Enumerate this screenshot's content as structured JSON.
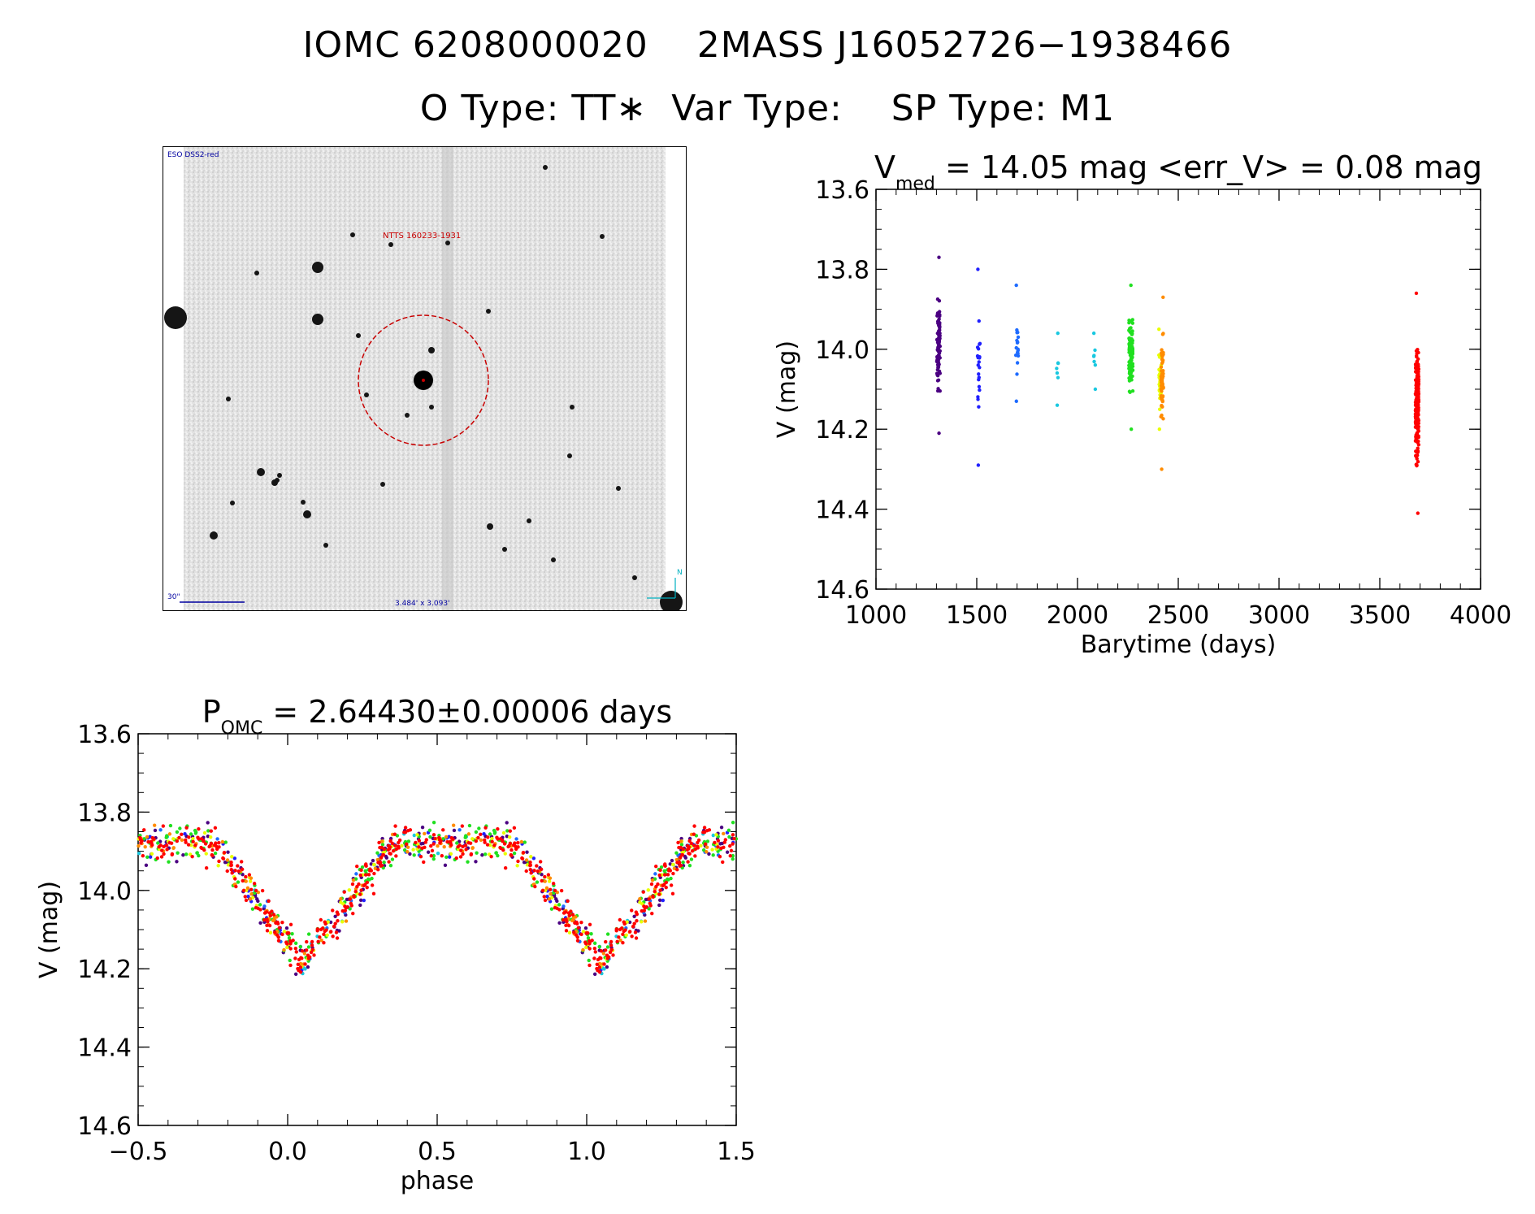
{
  "header": {
    "line1": "IOMC 6208000020    2MASS J16052726−1938466",
    "line2": "O Type: TT∗  Var Type:    SP Type: M1"
  },
  "thumbnail": {
    "top_left_label": "ESO DSS2-red",
    "object_label": "NTTS 160233-1931",
    "scale_label": "30\"",
    "fov_label": "3.484' x 3.093'",
    "compass_label": "N"
  },
  "colors": {
    "seq1": "#4b0082",
    "seq2": "#2020ff",
    "seq3": "#1e6bff",
    "seq4": "#19c8e0",
    "seq5": "#20e020",
    "seq6": "#e8ff00",
    "seq7": "#ff8c00",
    "seq8": "#ff0000",
    "circle": "#c80000"
  },
  "chart_data": [
    {
      "type": "scatter",
      "name": "lightcurve",
      "title": "V",
      "title_sub": "med",
      "title_rest": " = 14.05 mag <err_V> = 0.08 mag",
      "xlabel": "Barytime (days)",
      "ylabel": "V (mag)",
      "xlim": [
        1000,
        4000
      ],
      "ylim": [
        14.6,
        13.6
      ],
      "xticks": [
        "1000",
        "1500",
        "2000",
        "2500",
        "3000",
        "3500",
        "4000"
      ],
      "yticks": [
        "13.6",
        "13.8",
        "14.0",
        "14.2",
        "14.4",
        "14.6"
      ],
      "series": [
        {
          "name": "seq1",
          "x_center": 1310,
          "x_spread": 8,
          "y_min": 13.77,
          "y_max": 14.21,
          "count": 90
        },
        {
          "name": "seq2",
          "x_center": 1510,
          "x_spread": 6,
          "y_min": 13.8,
          "y_max": 14.29,
          "count": 22
        },
        {
          "name": "seq3",
          "x_center": 1700,
          "x_spread": 6,
          "y_min": 13.84,
          "y_max": 14.13,
          "count": 18
        },
        {
          "name": "seq4a",
          "x_center": 1900,
          "x_spread": 4,
          "y_min": 13.96,
          "y_max": 14.14,
          "count": 7
        },
        {
          "name": "seq4b",
          "x_center": 2085,
          "x_spread": 4,
          "y_min": 13.96,
          "y_max": 14.1,
          "count": 7
        },
        {
          "name": "seq5",
          "x_center": 2265,
          "x_spread": 10,
          "y_min": 13.84,
          "y_max": 14.2,
          "count": 110
        },
        {
          "name": "seq6",
          "x_center": 2410,
          "x_spread": 6,
          "y_min": 13.95,
          "y_max": 14.2,
          "count": 50
        },
        {
          "name": "seq7",
          "x_center": 2420,
          "x_spread": 6,
          "y_min": 13.87,
          "y_max": 14.3,
          "count": 60
        },
        {
          "name": "seq8",
          "x_center": 3685,
          "x_spread": 8,
          "y_min": 13.86,
          "y_max": 14.41,
          "count": 260
        }
      ]
    },
    {
      "type": "scatter",
      "name": "phased",
      "title": "P",
      "title_sub": "OMC",
      "title_rest": " = 2.64430±0.00006 days",
      "xlabel": "phase",
      "ylabel": "V (mag)",
      "xlim": [
        -0.5,
        1.5
      ],
      "ylim": [
        14.6,
        13.6
      ],
      "xticks": [
        "−0.5",
        "0.0",
        "0.5",
        "1.0",
        "1.5"
      ],
      "yticks": [
        "13.6",
        "13.8",
        "14.0",
        "14.2",
        "14.4",
        "14.6"
      ],
      "period": 2.6443,
      "light_curve_shape": {
        "min_phase": 0.05,
        "max_mag": 14.18,
        "min_mag": 13.88,
        "scatter": 0.09
      }
    }
  ]
}
